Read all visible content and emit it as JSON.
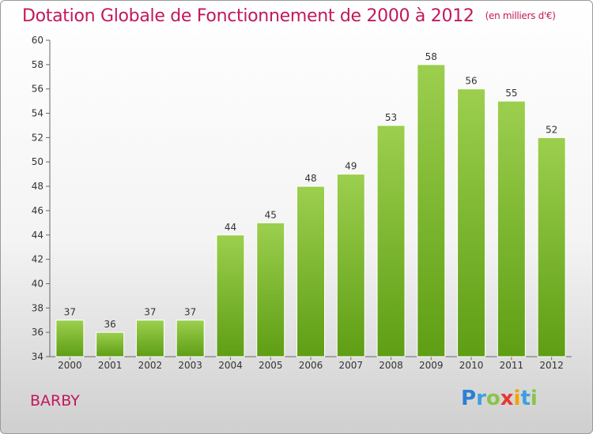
{
  "header": {
    "title": "Dotation Globale de Fonctionnement de 2000 à 2012",
    "subtitle": "(en milliers d'€)"
  },
  "footer": {
    "commune": "BARBY",
    "logo_text": "Proxiti",
    "logo_letters": [
      "P",
      "r",
      "o",
      "x",
      "i",
      "t",
      "i"
    ]
  },
  "colors": {
    "title": "#c2185b",
    "bar_top": "#9ccf4e",
    "bar_bottom": "#5e9e14"
  },
  "chart_data": {
    "type": "bar",
    "title": "Dotation Globale de Fonctionnement de 2000 à 2012",
    "subtitle": "(en milliers d'€)",
    "categories": [
      "2000",
      "2001",
      "2002",
      "2003",
      "2004",
      "2005",
      "2006",
      "2007",
      "2008",
      "2009",
      "2010",
      "2011",
      "2012"
    ],
    "values": [
      37,
      36,
      37,
      37,
      44,
      45,
      48,
      49,
      53,
      58,
      56,
      55,
      52
    ],
    "ylim": [
      34,
      60
    ],
    "yticks": [
      34,
      36,
      38,
      40,
      42,
      44,
      46,
      48,
      50,
      52,
      54,
      56,
      58,
      60
    ],
    "xlabel": "",
    "ylabel": "",
    "grid": false,
    "data_labels": true
  }
}
